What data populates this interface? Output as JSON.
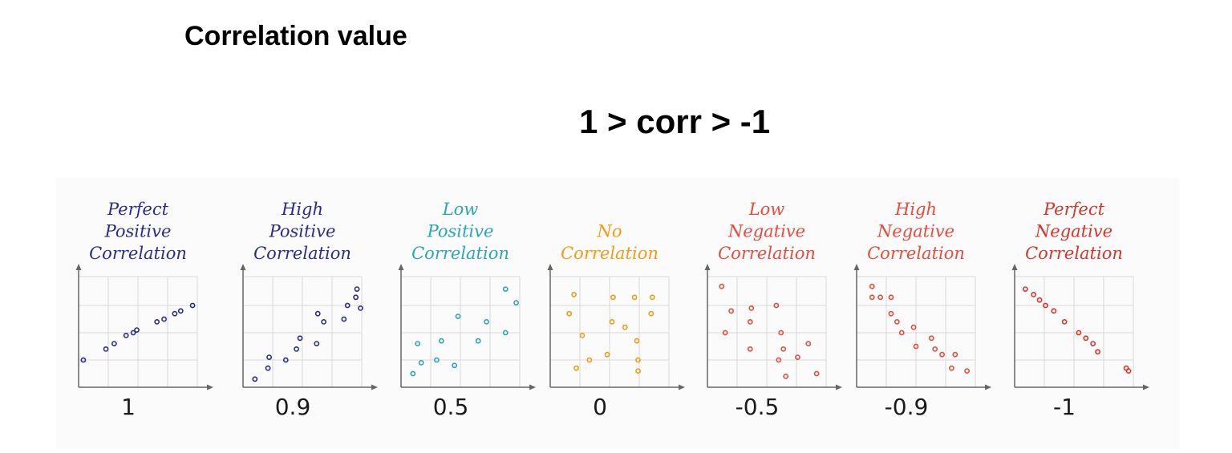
{
  "title": "Correlation value",
  "formula": "1 > corr > -1",
  "chart_data": [
    {
      "type": "scatter",
      "title": [
        "Perfect",
        "Positive",
        "Correlation"
      ],
      "color": "#2b2b8c",
      "value_label": "1",
      "xlim": [
        0,
        10
      ],
      "ylim": [
        0,
        10
      ],
      "points": [
        [
          0.4,
          1.0
        ],
        [
          2.3,
          1.4
        ],
        [
          3.0,
          1.6
        ],
        [
          4.0,
          1.9
        ],
        [
          4.6,
          2.0
        ],
        [
          4.9,
          2.1
        ],
        [
          6.6,
          2.4
        ],
        [
          7.2,
          2.5
        ],
        [
          8.1,
          2.7
        ],
        [
          8.6,
          2.8
        ],
        [
          9.6,
          3.0
        ]
      ]
    },
    {
      "type": "scatter",
      "title": [
        "High",
        "Positive",
        "Correlation"
      ],
      "color": "#2b2b8c",
      "value_label": "0.9",
      "xlim": [
        0,
        10
      ],
      "ylim": [
        0,
        10
      ],
      "points": [
        [
          1.0,
          0.3
        ],
        [
          2.1,
          0.7
        ],
        [
          2.2,
          1.1
        ],
        [
          3.6,
          1.0
        ],
        [
          4.5,
          1.4
        ],
        [
          4.8,
          1.8
        ],
        [
          6.2,
          1.6
        ],
        [
          6.3,
          2.7
        ],
        [
          6.8,
          2.4
        ],
        [
          8.5,
          2.5
        ],
        [
          8.8,
          3.0
        ],
        [
          9.5,
          3.3
        ],
        [
          9.6,
          3.6
        ],
        [
          9.9,
          2.9
        ]
      ]
    },
    {
      "type": "scatter",
      "title": [
        "Low",
        "Positive",
        "Correlation"
      ],
      "color": "#2aa6b8",
      "value_label": "0.5",
      "xlim": [
        0,
        10
      ],
      "ylim": [
        0,
        10
      ],
      "points": [
        [
          1.0,
          0.5
        ],
        [
          1.4,
          1.6
        ],
        [
          1.7,
          0.9
        ],
        [
          3.0,
          1.0
        ],
        [
          3.4,
          1.7
        ],
        [
          4.5,
          0.8
        ],
        [
          4.8,
          2.6
        ],
        [
          6.5,
          1.7
        ],
        [
          7.2,
          2.4
        ],
        [
          8.8,
          2.0
        ],
        [
          8.8,
          3.6
        ],
        [
          9.7,
          3.1
        ]
      ]
    },
    {
      "type": "scatter",
      "title": [
        "No",
        "Correlation"
      ],
      "color": "#f39c12",
      "value_label": "0",
      "xlim": [
        0,
        10
      ],
      "ylim": [
        0,
        10
      ],
      "points": [
        [
          1.6,
          2.7
        ],
        [
          2.0,
          3.4
        ],
        [
          2.2,
          0.7
        ],
        [
          2.7,
          1.9
        ],
        [
          3.3,
          1.0
        ],
        [
          4.8,
          1.2
        ],
        [
          5.2,
          2.4
        ],
        [
          5.3,
          3.3
        ],
        [
          6.3,
          2.2
        ],
        [
          7.1,
          3.3
        ],
        [
          7.3,
          1.7
        ],
        [
          7.4,
          1.0
        ],
        [
          7.4,
          0.6
        ],
        [
          8.5,
          2.7
        ],
        [
          8.6,
          3.3
        ]
      ]
    },
    {
      "type": "scatter",
      "title": [
        "Low",
        "Negative",
        "Correlation"
      ],
      "color": "#e74c3c",
      "value_label": "-0.5",
      "xlim": [
        0,
        10
      ],
      "ylim": [
        0,
        10
      ],
      "points": [
        [
          1.2,
          3.7
        ],
        [
          1.5,
          2.0
        ],
        [
          2.0,
          2.8
        ],
        [
          3.6,
          1.4
        ],
        [
          3.6,
          2.4
        ],
        [
          3.7,
          2.9
        ],
        [
          5.8,
          3.0
        ],
        [
          6.0,
          1.0
        ],
        [
          6.2,
          2.0
        ],
        [
          6.4,
          1.4
        ],
        [
          6.6,
          0.4
        ],
        [
          7.6,
          1.1
        ],
        [
          8.5,
          1.6
        ],
        [
          9.2,
          0.5
        ]
      ]
    },
    {
      "type": "scatter",
      "title": [
        "High",
        "Negative",
        "Correlation"
      ],
      "color": "#e74c3c",
      "value_label": "-0.9",
      "xlim": [
        0,
        10
      ],
      "ylim": [
        0,
        10
      ],
      "points": [
        [
          1.3,
          3.7
        ],
        [
          1.3,
          3.3
        ],
        [
          2.0,
          3.3
        ],
        [
          2.9,
          3.3
        ],
        [
          2.9,
          2.7
        ],
        [
          3.4,
          2.4
        ],
        [
          3.8,
          2.0
        ],
        [
          4.8,
          2.2
        ],
        [
          5.0,
          1.5
        ],
        [
          6.3,
          1.8
        ],
        [
          6.6,
          1.4
        ],
        [
          7.2,
          1.2
        ],
        [
          8.0,
          0.7
        ],
        [
          8.3,
          1.2
        ],
        [
          9.3,
          0.6
        ]
      ]
    },
    {
      "type": "scatter",
      "title": [
        "Perfect",
        "Negative",
        "Correlation"
      ],
      "color": "#d9342b",
      "value_label": "-1",
      "xlim": [
        0,
        10
      ],
      "ylim": [
        0,
        10
      ],
      "points": [
        [
          0.9,
          3.6
        ],
        [
          1.6,
          3.4
        ],
        [
          2.1,
          3.2
        ],
        [
          2.6,
          3.0
        ],
        [
          3.3,
          2.8
        ],
        [
          4.2,
          2.4
        ],
        [
          5.4,
          2.0
        ],
        [
          6.0,
          1.8
        ],
        [
          6.6,
          1.6
        ],
        [
          7.0,
          1.3
        ],
        [
          9.4,
          0.7
        ],
        [
          9.6,
          0.6
        ]
      ]
    }
  ]
}
